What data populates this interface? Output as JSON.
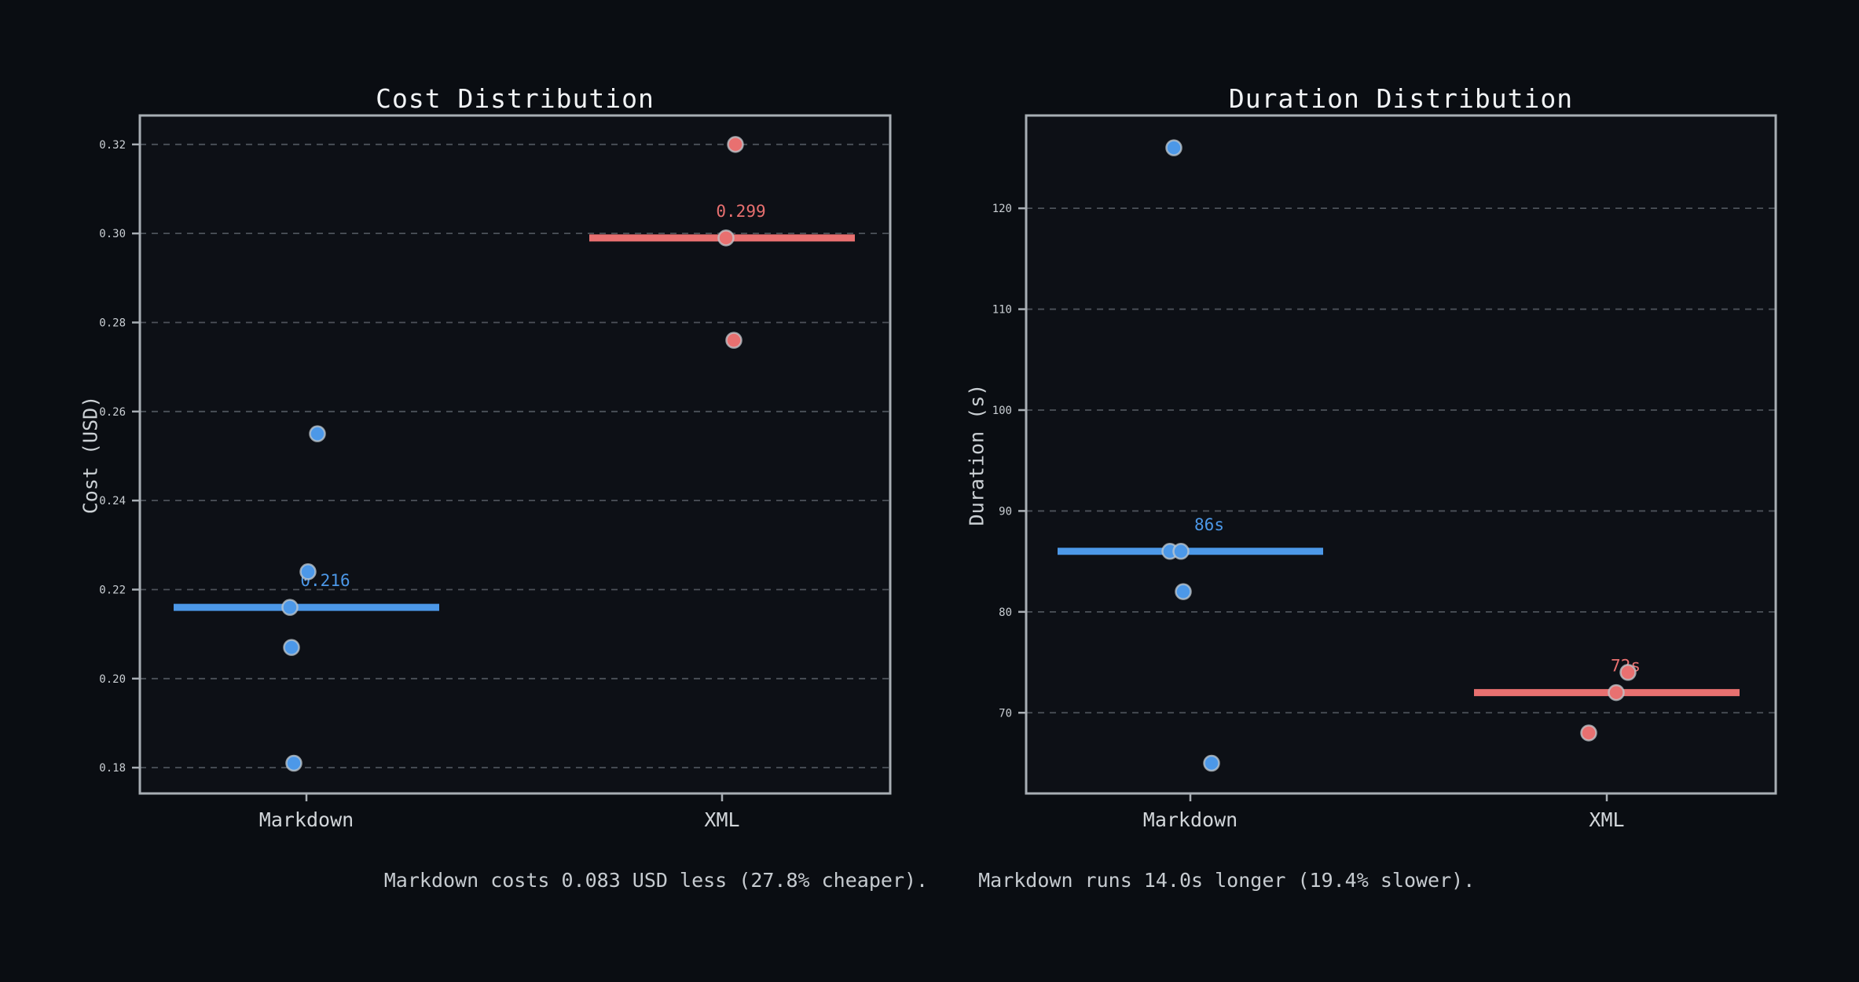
{
  "styles": {
    "figure_bg": "#0a0d12",
    "axes_bg": "#0d1016",
    "blue": "#4c98e8",
    "red": "#e87070",
    "spine": "#a8aeb4",
    "grid": "#4d525a",
    "tick_label": "#c9ced3",
    "cat_label": "#d2d6da",
    "title_color": "#f1f3f5",
    "axis_label_color": "#ccd1d5",
    "footer_color": "#c6cbd0",
    "point_stroke": "#c2c9cf"
  },
  "footer": {
    "cost_note": "Markdown costs 0.083 USD less (27.8% cheaper).",
    "duration_note": "Markdown runs 14.0s longer (19.4% slower)."
  },
  "chart_data": [
    {
      "type": "scatter",
      "title": "Cost Distribution",
      "ylabel": "Cost (USD)",
      "xlabel": "",
      "categories": [
        "Markdown",
        "XML"
      ],
      "ylim": [
        0.1742,
        0.3265
      ],
      "yticks": [
        0.18,
        0.2,
        0.22,
        0.24,
        0.26,
        0.28,
        0.3,
        0.32
      ],
      "ytick_labels": [
        "0.18",
        "0.20",
        "0.22",
        "0.24",
        "0.26",
        "0.28",
        "0.30",
        "0.32"
      ],
      "grid": true,
      "legend": "none",
      "series": [
        {
          "name": "Markdown",
          "color": "#4c98e8",
          "points": [
            0.255,
            0.224,
            0.216,
            0.207,
            0.181
          ],
          "jitter": [
            14,
            2,
            -21,
            -19,
            -16
          ],
          "median": 0.216,
          "median_label": "0.216"
        },
        {
          "name": "XML",
          "color": "#e87070",
          "points": [
            0.32,
            0.299,
            0.276
          ],
          "jitter": [
            17,
            5,
            15
          ],
          "median": 0.299,
          "median_label": "0.299"
        }
      ]
    },
    {
      "type": "scatter",
      "title": "Duration Distribution",
      "ylabel": "Duration (s)",
      "xlabel": "",
      "categories": [
        "Markdown",
        "XML"
      ],
      "ylim": [
        62.0,
        129.2
      ],
      "yticks": [
        70,
        80,
        90,
        100,
        110,
        120
      ],
      "ytick_labels": [
        "70",
        "80",
        "90",
        "100",
        "110",
        "120"
      ],
      "grid": true,
      "legend": "none",
      "series": [
        {
          "name": "Markdown",
          "color": "#4c98e8",
          "points": [
            126,
            86,
            86,
            82,
            65
          ],
          "jitter": [
            -21,
            -26,
            -12,
            -9,
            27
          ],
          "median": 86,
          "median_label": "86s"
        },
        {
          "name": "XML",
          "color": "#e87070",
          "points": [
            74,
            72,
            68
          ],
          "jitter": [
            27,
            12,
            -23
          ],
          "median": 72,
          "median_label": "72s"
        }
      ]
    }
  ]
}
